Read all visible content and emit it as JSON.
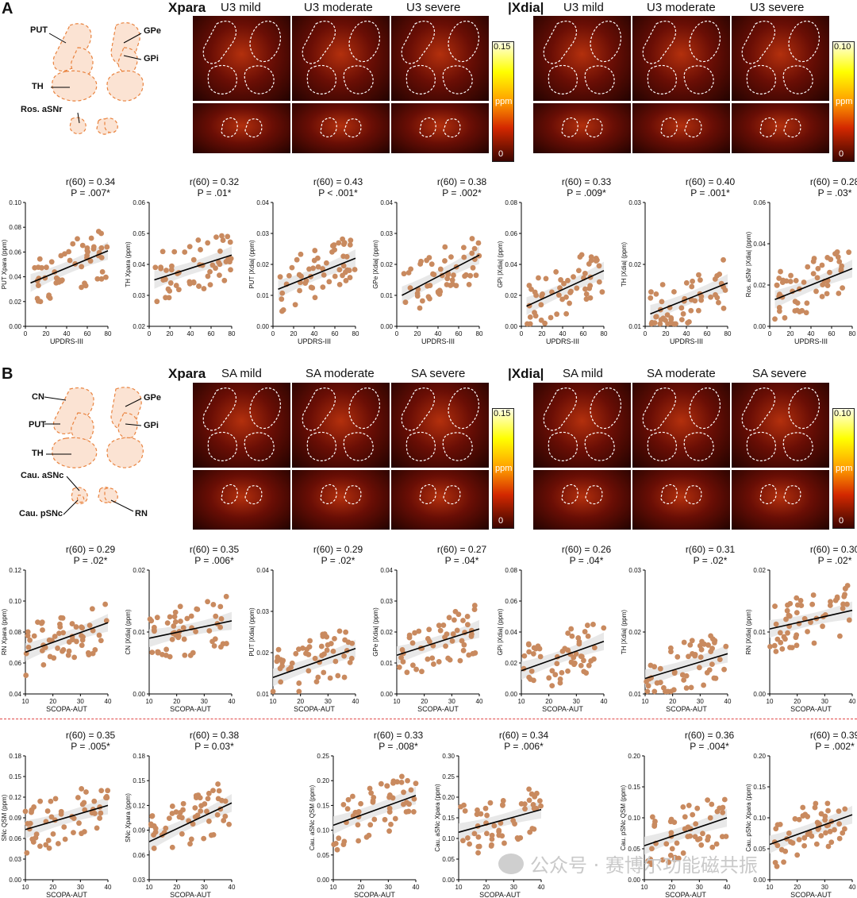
{
  "panels": {
    "A": {
      "letter": "A",
      "anatomy_labels": [
        "PUT",
        "GPe",
        "GPi",
        "TH",
        "Ros. aSNr"
      ],
      "maps": {
        "xpara": {
          "title": "Xpara",
          "columns": [
            "U3 mild",
            "U3 moderate",
            "U3 severe"
          ],
          "cbar_max": "0.15",
          "cbar_unit": "ppm",
          "cbar_min": "0"
        },
        "xdia": {
          "title": "|Xdia|",
          "columns": [
            "U3 mild",
            "U3 moderate",
            "U3 severe"
          ],
          "cbar_max": "0.10",
          "cbar_unit": "ppm",
          "cbar_min": "0"
        }
      }
    },
    "B": {
      "letter": "B",
      "anatomy_labels": [
        "CN",
        "GPe",
        "PUT",
        "GPi",
        "TH",
        "Cau. aSNc",
        "Cau. pSNc",
        "RN"
      ],
      "maps": {
        "xpara": {
          "title": "Xpara",
          "columns": [
            "SA mild",
            "SA moderate",
            "SA severe"
          ],
          "cbar_max": "0.15",
          "cbar_unit": "ppm",
          "cbar_min": "0"
        },
        "xdia": {
          "title": "|Xdia|",
          "columns": [
            "SA mild",
            "SA moderate",
            "SA severe"
          ],
          "cbar_max": "0.10",
          "cbar_unit": "ppm",
          "cbar_min": "0"
        }
      }
    }
  },
  "chart_data": [
    {
      "type": "scatter",
      "xlabel": "UPDRS-III",
      "ylabel": "PUT Xpara (ppm)",
      "stat_r": "r(60) = 0.34",
      "stat_p": "P = .007*",
      "xlim": [
        0,
        80
      ],
      "ylim": [
        0.0,
        0.1
      ],
      "xticks": [
        "0",
        "20",
        "40",
        "60",
        "80"
      ],
      "yticks": [
        "0.00",
        "0.02",
        "0.04",
        "0.06",
        "0.08",
        "0.10"
      ],
      "fit": [
        [
          5,
          0.035
        ],
        [
          80,
          0.061
        ]
      ]
    },
    {
      "type": "scatter",
      "xlabel": "",
      "ylabel": "TH Xpara (ppm)",
      "stat_r": "r(60) = 0.32",
      "stat_p": "P = .01*",
      "xlim": [
        0,
        80
      ],
      "ylim": [
        0.02,
        0.06
      ],
      "xticks": [
        "0",
        "20",
        "40",
        "60",
        "80"
      ],
      "yticks": [
        "0.02",
        "0.03",
        "0.04",
        "0.05",
        "0.06"
      ],
      "fit": [
        [
          5,
          0.035
        ],
        [
          80,
          0.043
        ]
      ]
    },
    {
      "type": "scatter",
      "xlabel": "UPDRS-III",
      "ylabel": "PUT |Xdia| (ppm)",
      "stat_r": "r(60) = 0.43",
      "stat_p": "P < .001*",
      "xlim": [
        0,
        80
      ],
      "ylim": [
        0.0,
        0.04
      ],
      "xticks": [
        "0",
        "20",
        "40",
        "60",
        "80"
      ],
      "yticks": [
        "0.00",
        "0.01",
        "0.02",
        "0.03",
        "0.04"
      ],
      "fit": [
        [
          5,
          0.012
        ],
        [
          80,
          0.022
        ]
      ]
    },
    {
      "type": "scatter",
      "xlabel": "UPDRS-III",
      "ylabel": "GPe |Xdia| (ppm)",
      "stat_r": "r(60) = 0.38",
      "stat_p": "P = .002*",
      "xlim": [
        0,
        80
      ],
      "ylim": [
        0.0,
        0.04
      ],
      "xticks": [
        "0",
        "20",
        "40",
        "60",
        "80"
      ],
      "yticks": [
        "0.00",
        "0.01",
        "0.02",
        "0.03",
        "0.04"
      ],
      "fit": [
        [
          5,
          0.01
        ],
        [
          80,
          0.023
        ]
      ]
    },
    {
      "type": "scatter",
      "xlabel": "UPDRS-III",
      "ylabel": "GPi |Xdia| (ppm)",
      "stat_r": "r(60) = 0.33",
      "stat_p": "P = .009*",
      "xlim": [
        0,
        80
      ],
      "ylim": [
        0.0,
        0.08
      ],
      "xticks": [
        "0",
        "20",
        "40",
        "60",
        "80"
      ],
      "yticks": [
        "0.00",
        "0.02",
        "0.04",
        "0.06",
        "0.08"
      ],
      "fit": [
        [
          5,
          0.013
        ],
        [
          80,
          0.036
        ]
      ]
    },
    {
      "type": "scatter",
      "xlabel": "UPDRS-III",
      "ylabel": "TH |Xdia| (ppm)",
      "stat_r": "r(60) = 0.40",
      "stat_p": "P = .001*",
      "xlim": [
        0,
        80
      ],
      "ylim": [
        0.01,
        0.03
      ],
      "xticks": [
        "0",
        "20",
        "40",
        "60",
        "80"
      ],
      "yticks": [
        "0.01",
        "0.02",
        "0.03"
      ],
      "fit": [
        [
          5,
          0.012
        ],
        [
          80,
          0.017
        ]
      ]
    },
    {
      "type": "scatter",
      "xlabel": "UPDRS-III",
      "ylabel": "Ros. aSNr |Xdia| (ppm)",
      "stat_r": "r(60) = 0.28",
      "stat_p": "P = .03*",
      "xlim": [
        0,
        80
      ],
      "ylim": [
        0.0,
        0.06
      ],
      "xticks": [
        "0",
        "20",
        "40",
        "60",
        "80"
      ],
      "yticks": [
        "0.00",
        "0.02",
        "0.04",
        "0.06"
      ],
      "fit": [
        [
          5,
          0.013
        ],
        [
          80,
          0.028
        ]
      ]
    },
    {
      "type": "scatter",
      "xlabel": "SCOPA-AUT",
      "ylabel": "RN Xpara (ppm)",
      "stat_r": "r(60) = 0.29",
      "stat_p": "P = .02*",
      "xlim": [
        10,
        43
      ],
      "ylim": [
        0.04,
        0.12
      ],
      "xticks": [
        "10",
        "20",
        "30",
        "40"
      ],
      "yticks": [
        "0.04",
        "0.06",
        "0.08",
        "0.10",
        "0.12"
      ],
      "fit": [
        [
          10,
          0.067
        ],
        [
          43,
          0.086
        ]
      ]
    },
    {
      "type": "scatter",
      "xlabel": "SCOPA-AUT",
      "ylabel": "CN |Xdia| (ppm)",
      "stat_r": "r(60) = 0.35",
      "stat_p": "P = .006*",
      "xlim": [
        10,
        43
      ],
      "ylim": [
        0.0,
        0.02
      ],
      "xticks": [
        "10",
        "20",
        "30",
        "40"
      ],
      "yticks": [
        "0.00",
        "0.01",
        "0.02"
      ],
      "fit": [
        [
          10,
          0.009
        ],
        [
          43,
          0.0118
        ]
      ]
    },
    {
      "type": "scatter",
      "xlabel": "SCOPA-AUT",
      "ylabel": "PUT |Xdia| (ppm)",
      "stat_r": "r(60) = 0.29",
      "stat_p": "P = .02*",
      "xlim": [
        10,
        43
      ],
      "ylim": [
        0.01,
        0.04
      ],
      "xticks": [
        "10",
        "20",
        "30",
        "40"
      ],
      "yticks": [
        "0.01",
        "0.02",
        "0.03",
        "0.04"
      ],
      "fit": [
        [
          10,
          0.014
        ],
        [
          43,
          0.021
        ]
      ]
    },
    {
      "type": "scatter",
      "xlabel": "SCOPA-AUT",
      "ylabel": "GPe |Xdia| (ppm)",
      "stat_r": "r(60) = 0.27",
      "stat_p": "P = .04*",
      "xlim": [
        10,
        43
      ],
      "ylim": [
        0.0,
        0.04
      ],
      "xticks": [
        "10",
        "20",
        "30",
        "40"
      ],
      "yticks": [
        "0.00",
        "0.01",
        "0.02",
        "0.03",
        "0.04"
      ],
      "fit": [
        [
          10,
          0.0125
        ],
        [
          43,
          0.021
        ]
      ]
    },
    {
      "type": "scatter",
      "xlabel": "SCOPA-AUT",
      "ylabel": "GPi |Xdia| (ppm)",
      "stat_r": "r(60) = 0.26",
      "stat_p": "P = .04*",
      "xlim": [
        10,
        43
      ],
      "ylim": [
        0.0,
        0.08
      ],
      "xticks": [
        "10",
        "20",
        "30",
        "40"
      ],
      "yticks": [
        "0.00",
        "0.02",
        "0.04",
        "0.06",
        "0.08"
      ],
      "fit": [
        [
          10,
          0.015
        ],
        [
          43,
          0.034
        ]
      ]
    },
    {
      "type": "scatter",
      "xlabel": "SCOPA-AUT",
      "ylabel": "TH |Xdia| (ppm)",
      "stat_r": "r(60) = 0.31",
      "stat_p": "P = .02*",
      "xlim": [
        10,
        43
      ],
      "ylim": [
        0.01,
        0.03
      ],
      "xticks": [
        "10",
        "20",
        "30",
        "40"
      ],
      "yticks": [
        "0.01",
        "0.02",
        "0.03"
      ],
      "fit": [
        [
          10,
          0.0125
        ],
        [
          43,
          0.0165
        ]
      ]
    },
    {
      "type": "scatter",
      "xlabel": "SCOPA-AUT",
      "ylabel": "RN |Xdia| (ppm)",
      "stat_r": "r(60) = 0.30",
      "stat_p": "P = .02*",
      "xlim": [
        10,
        43
      ],
      "ylim": [
        0.0,
        0.02
      ],
      "xticks": [
        "10",
        "20",
        "30",
        "40"
      ],
      "yticks": [
        "0.00",
        "0.01",
        "0.02"
      ],
      "fit": [
        [
          10,
          0.0105
        ],
        [
          43,
          0.0135
        ]
      ]
    },
    {
      "type": "scatter",
      "xlabel": "SCOPA-AUT",
      "ylabel": "SNc QSM (ppm)",
      "stat_r": "r(60) = 0.35",
      "stat_p": "P = .005*",
      "xlim": [
        10,
        43
      ],
      "ylim": [
        0.0,
        0.18
      ],
      "xticks": [
        "10",
        "20",
        "30",
        "40"
      ],
      "yticks": [
        "0.00",
        "0.03",
        "0.06",
        "0.09",
        "0.12",
        "0.15",
        "0.18"
      ],
      "fit": [
        [
          10,
          0.073
        ],
        [
          43,
          0.108
        ]
      ]
    },
    {
      "type": "scatter",
      "xlabel": "SCOPA-AUT",
      "ylabel": "SNc Xpara (ppm)",
      "stat_r": "r(60) = 0.38",
      "stat_p": "P = 0.03*",
      "xlim": [
        10,
        43
      ],
      "ylim": [
        0.03,
        0.18
      ],
      "xticks": [
        "10",
        "20",
        "30",
        "40"
      ],
      "yticks": [
        "0.03",
        "0.06",
        "0.09",
        "0.12",
        "0.15",
        "0.18"
      ],
      "fit": [
        [
          10,
          0.076
        ],
        [
          43,
          0.123
        ]
      ]
    },
    {
      "type": "scatter",
      "xlabel": "SCOPA-AUT",
      "ylabel": "Cau. aSNc QSM (ppm)",
      "stat_r": "r(60) = 0.33",
      "stat_p": "P = .008*",
      "xlim": [
        10,
        43
      ],
      "ylim": [
        0.0,
        0.25
      ],
      "xticks": [
        "10",
        "20",
        "30",
        "40"
      ],
      "yticks": [
        "0.00",
        "0.05",
        "0.10",
        "0.15",
        "0.20",
        "0.25"
      ],
      "fit": [
        [
          10,
          0.11
        ],
        [
          43,
          0.17
        ]
      ]
    },
    {
      "type": "scatter",
      "xlabel": "SCOPA-AUT",
      "ylabel": "Cau. aSNc Xpara (ppm)",
      "stat_r": "r(60) = 0.34",
      "stat_p": "P = .006*",
      "xlim": [
        10,
        43
      ],
      "ylim": [
        0.0,
        0.3
      ],
      "xticks": [
        "10",
        "20",
        "30",
        "40"
      ],
      "yticks": [
        "0.00",
        "0.05",
        "0.10",
        "0.15",
        "0.20",
        "0.25",
        "0.30"
      ],
      "fit": [
        [
          10,
          0.115
        ],
        [
          43,
          0.17
        ]
      ]
    },
    {
      "type": "scatter",
      "xlabel": "SCOPA-AUT",
      "ylabel": "Cau. pSNc QSM (ppm)",
      "stat_r": "r(60) = 0.36",
      "stat_p": "P = .004*",
      "xlim": [
        10,
        43
      ],
      "ylim": [
        0.0,
        0.2
      ],
      "xticks": [
        "10",
        "20",
        "30",
        "40"
      ],
      "yticks": [
        "0.00",
        "0.05",
        "0.10",
        "0.15",
        "0.20"
      ],
      "fit": [
        [
          10,
          0.055
        ],
        [
          43,
          0.1
        ]
      ]
    },
    {
      "type": "scatter",
      "xlabel": "SCOPA-AUT",
      "ylabel": "Cau. pSNc Xpara (ppm)",
      "stat_r": "r(60) = 0.39",
      "stat_p": "P = .002*",
      "xlim": [
        10,
        43
      ],
      "ylim": [
        0.0,
        0.2
      ],
      "xticks": [
        "10",
        "20",
        "30",
        "40"
      ],
      "yticks": [
        "0.00",
        "0.05",
        "0.10",
        "0.15",
        "0.20"
      ],
      "fit": [
        [
          10,
          0.057
        ],
        [
          43,
          0.105
        ]
      ]
    }
  ],
  "watermark": "公众号 · 赛博尔功能磁共振",
  "colors": {
    "dot": "#c98a5f",
    "fit": "#000000",
    "band": "#e4e4e4",
    "divider": "#e04848",
    "anatomy_fill": "#fbe3d3",
    "anatomy_stroke": "#e9833f"
  }
}
